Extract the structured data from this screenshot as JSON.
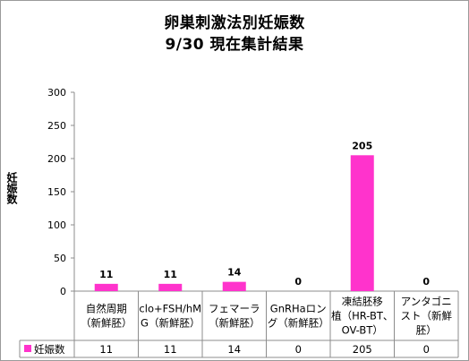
{
  "chart_data": {
    "type": "bar",
    "title": "卵巣刺激法別妊娠数",
    "subtitle": "9/30  現在集計結果",
    "ylabel": "妊娠数",
    "ylim": [
      0,
      300
    ],
    "yticks": [
      0,
      50,
      100,
      150,
      200,
      250,
      300
    ],
    "grid": false,
    "legend_position": "table-left",
    "categories": [
      [
        "自然周期",
        "（新鮮胚）"
      ],
      [
        "clo+FSH/hM",
        "G（新鮮胚）"
      ],
      [
        "フェマーラ",
        "（新鮮胚）"
      ],
      [
        "GnRHaロン",
        "グ（新鮮胚）"
      ],
      [
        "凍結胚移",
        "植（HR-BT、",
        "OV-BT）"
      ],
      [
        "アンタゴニ",
        "スト（新鮮",
        "胚）"
      ]
    ],
    "series": [
      {
        "name": "妊娠数",
        "color": "#ff33cc",
        "values": [
          11,
          11,
          14,
          0,
          205,
          0
        ]
      }
    ]
  }
}
